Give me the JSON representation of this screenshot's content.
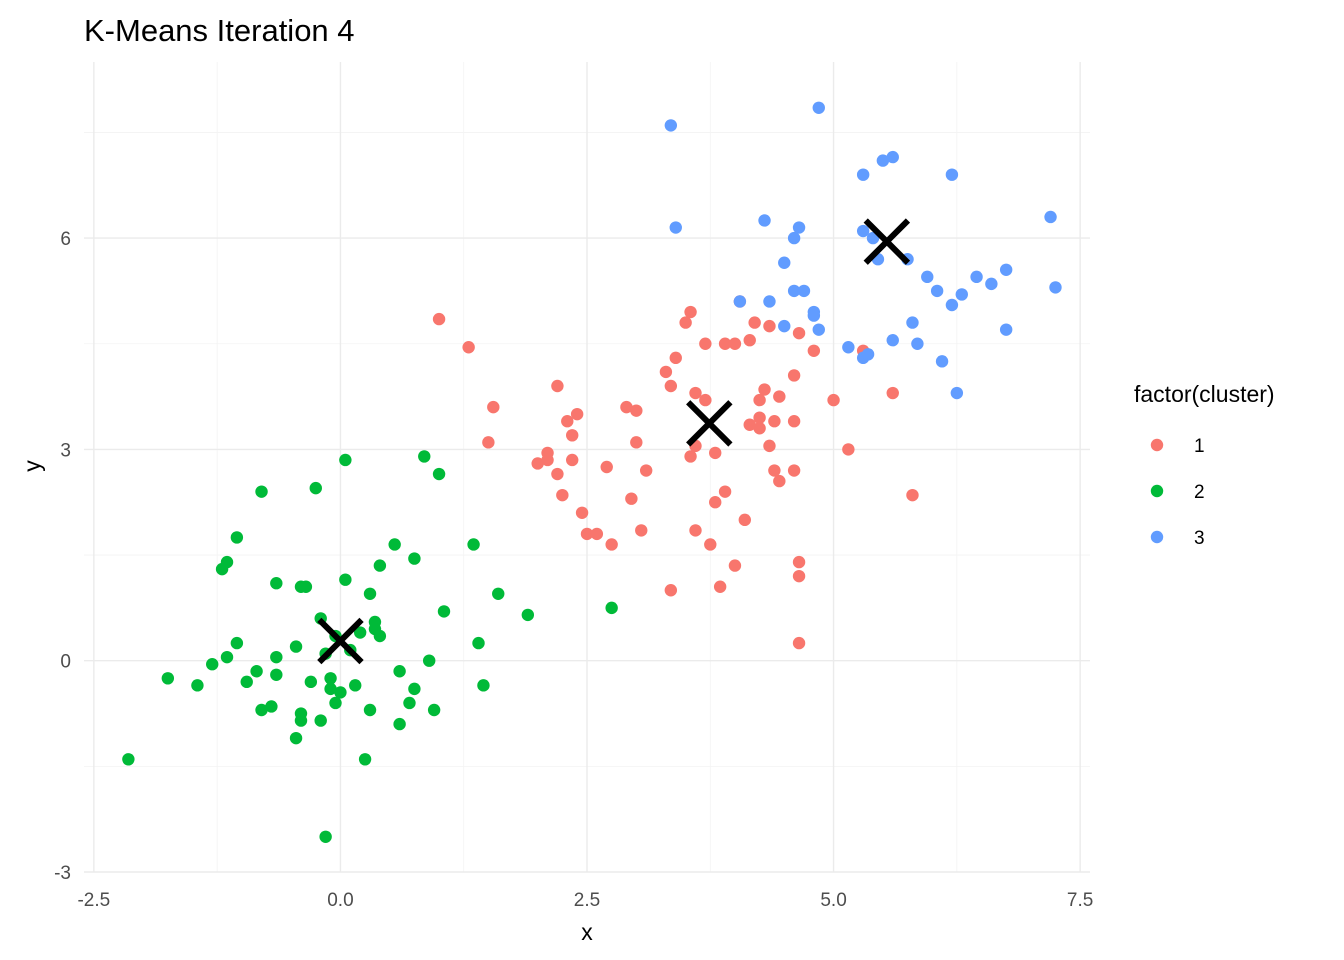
{
  "chart_data": {
    "type": "scatter",
    "title": "K-Means Iteration 4",
    "xlabel": "x",
    "ylabel": "y",
    "xlim": [
      -2.6,
      7.6
    ],
    "ylim": [
      -3.0,
      8.5
    ],
    "x_ticks": [
      -2.5,
      0.0,
      2.5,
      5.0,
      7.5
    ],
    "x_tick_labels": [
      "-2.5",
      "0.0",
      "2.5",
      "5.0",
      "7.5"
    ],
    "y_ticks": [
      -3,
      0,
      3,
      6
    ],
    "y_tick_labels": [
      "-3",
      "0",
      "3",
      "6"
    ],
    "grid": true,
    "legend": {
      "title": "factor(cluster)",
      "position": "right"
    },
    "series": [
      {
        "name": "1",
        "color": "#F8766D",
        "points": [
          [
            1.0,
            4.85
          ],
          [
            1.3,
            4.45
          ],
          [
            1.5,
            3.1
          ],
          [
            1.55,
            3.6
          ],
          [
            2.0,
            2.8
          ],
          [
            2.1,
            2.85
          ],
          [
            2.1,
            2.95
          ],
          [
            2.2,
            3.9
          ],
          [
            2.2,
            2.65
          ],
          [
            2.25,
            2.35
          ],
          [
            2.3,
            3.4
          ],
          [
            2.35,
            3.2
          ],
          [
            2.35,
            2.85
          ],
          [
            2.4,
            3.5
          ],
          [
            2.45,
            2.1
          ],
          [
            2.5,
            1.8
          ],
          [
            2.6,
            1.8
          ],
          [
            2.7,
            2.75
          ],
          [
            2.75,
            1.65
          ],
          [
            2.9,
            3.6
          ],
          [
            2.95,
            2.3
          ],
          [
            3.0,
            3.55
          ],
          [
            3.0,
            3.1
          ],
          [
            3.05,
            1.85
          ],
          [
            3.1,
            2.7
          ],
          [
            3.3,
            4.1
          ],
          [
            3.35,
            3.9
          ],
          [
            3.35,
            1.0
          ],
          [
            3.4,
            4.3
          ],
          [
            3.5,
            4.8
          ],
          [
            3.55,
            4.95
          ],
          [
            3.55,
            2.9
          ],
          [
            3.6,
            3.05
          ],
          [
            3.6,
            1.85
          ],
          [
            3.6,
            3.8
          ],
          [
            3.7,
            3.7
          ],
          [
            3.7,
            4.5
          ],
          [
            3.75,
            1.65
          ],
          [
            3.8,
            2.95
          ],
          [
            3.8,
            2.25
          ],
          [
            3.85,
            1.05
          ],
          [
            3.9,
            4.5
          ],
          [
            3.9,
            2.4
          ],
          [
            4.0,
            1.35
          ],
          [
            4.0,
            4.5
          ],
          [
            4.05,
            5.1
          ],
          [
            4.1,
            2.0
          ],
          [
            4.15,
            4.55
          ],
          [
            4.15,
            3.35
          ],
          [
            4.2,
            4.8
          ],
          [
            4.25,
            3.3
          ],
          [
            4.25,
            3.45
          ],
          [
            4.25,
            3.7
          ],
          [
            4.3,
            3.85
          ],
          [
            4.35,
            3.05
          ],
          [
            4.35,
            4.75
          ],
          [
            4.4,
            3.4
          ],
          [
            4.4,
            2.7
          ],
          [
            4.45,
            2.55
          ],
          [
            4.45,
            3.75
          ],
          [
            4.6,
            3.4
          ],
          [
            4.6,
            4.05
          ],
          [
            4.6,
            2.7
          ],
          [
            4.65,
            4.65
          ],
          [
            4.65,
            1.4
          ],
          [
            4.65,
            1.2
          ],
          [
            4.65,
            0.25
          ],
          [
            4.8,
            4.4
          ],
          [
            5.0,
            3.7
          ],
          [
            5.15,
            3.0
          ],
          [
            5.3,
            4.4
          ],
          [
            5.6,
            3.8
          ],
          [
            5.8,
            2.35
          ]
        ]
      },
      {
        "name": "2",
        "color": "#00BA38",
        "points": [
          [
            -2.15,
            -1.4
          ],
          [
            -1.75,
            -0.25
          ],
          [
            -1.45,
            -0.35
          ],
          [
            -1.3,
            -0.05
          ],
          [
            -1.2,
            1.3
          ],
          [
            -1.15,
            0.05
          ],
          [
            -1.15,
            1.4
          ],
          [
            -1.05,
            1.75
          ],
          [
            -1.05,
            0.25
          ],
          [
            -0.95,
            -0.3
          ],
          [
            -0.85,
            -0.15
          ],
          [
            -0.8,
            -0.7
          ],
          [
            -0.8,
            2.4
          ],
          [
            -0.7,
            -0.65
          ],
          [
            -0.65,
            1.1
          ],
          [
            -0.65,
            -0.2
          ],
          [
            -0.65,
            0.05
          ],
          [
            -0.45,
            0.2
          ],
          [
            -0.45,
            -1.1
          ],
          [
            -0.4,
            1.05
          ],
          [
            -0.4,
            -0.75
          ],
          [
            -0.4,
            -0.85
          ],
          [
            -0.35,
            1.05
          ],
          [
            -0.3,
            -0.3
          ],
          [
            -0.25,
            2.45
          ],
          [
            -0.2,
            0.6
          ],
          [
            -0.2,
            -0.85
          ],
          [
            -0.15,
            -2.5
          ],
          [
            -0.15,
            0.1
          ],
          [
            -0.1,
            -0.25
          ],
          [
            -0.1,
            -0.4
          ],
          [
            -0.05,
            -0.6
          ],
          [
            -0.05,
            0.35
          ],
          [
            0.0,
            -0.45
          ],
          [
            0.05,
            2.85
          ],
          [
            0.05,
            1.15
          ],
          [
            0.1,
            0.15
          ],
          [
            0.15,
            -0.35
          ],
          [
            0.2,
            0.4
          ],
          [
            0.25,
            -1.4
          ],
          [
            0.3,
            0.95
          ],
          [
            0.3,
            -0.7
          ],
          [
            0.35,
            0.55
          ],
          [
            0.35,
            0.45
          ],
          [
            0.4,
            1.35
          ],
          [
            0.4,
            0.35
          ],
          [
            0.55,
            1.65
          ],
          [
            0.6,
            -0.15
          ],
          [
            0.6,
            -0.9
          ],
          [
            0.7,
            -0.6
          ],
          [
            0.75,
            1.45
          ],
          [
            0.75,
            -0.4
          ],
          [
            0.85,
            2.9
          ],
          [
            0.9,
            0.0
          ],
          [
            0.95,
            -0.7
          ],
          [
            1.0,
            2.65
          ],
          [
            1.05,
            0.7
          ],
          [
            1.35,
            1.65
          ],
          [
            1.4,
            0.25
          ],
          [
            1.45,
            -0.35
          ],
          [
            1.6,
            0.95
          ],
          [
            1.9,
            0.65
          ],
          [
            2.75,
            0.75
          ]
        ]
      },
      {
        "name": "3",
        "color": "#619CFF",
        "points": [
          [
            3.35,
            7.6
          ],
          [
            3.4,
            6.15
          ],
          [
            4.05,
            5.1
          ],
          [
            4.3,
            6.25
          ],
          [
            4.35,
            5.1
          ],
          [
            4.5,
            5.65
          ],
          [
            4.5,
            4.75
          ],
          [
            4.6,
            6.0
          ],
          [
            4.6,
            5.25
          ],
          [
            4.65,
            6.15
          ],
          [
            4.7,
            5.25
          ],
          [
            4.8,
            4.95
          ],
          [
            4.8,
            4.9
          ],
          [
            4.85,
            7.85
          ],
          [
            4.85,
            4.7
          ],
          [
            5.15,
            4.45
          ],
          [
            5.3,
            4.3
          ],
          [
            5.3,
            6.9
          ],
          [
            5.3,
            6.1
          ],
          [
            5.35,
            4.35
          ],
          [
            5.4,
            6.0
          ],
          [
            5.45,
            5.7
          ],
          [
            5.5,
            7.1
          ],
          [
            5.6,
            7.15
          ],
          [
            5.6,
            4.55
          ],
          [
            5.75,
            5.7
          ],
          [
            5.8,
            4.8
          ],
          [
            5.85,
            4.5
          ],
          [
            5.95,
            5.45
          ],
          [
            6.05,
            5.25
          ],
          [
            6.1,
            4.25
          ],
          [
            6.2,
            6.9
          ],
          [
            6.2,
            5.05
          ],
          [
            6.25,
            3.8
          ],
          [
            6.3,
            5.2
          ],
          [
            6.45,
            5.45
          ],
          [
            6.6,
            5.35
          ],
          [
            6.75,
            5.55
          ],
          [
            6.75,
            4.7
          ],
          [
            7.2,
            6.3
          ],
          [
            7.25,
            5.3
          ]
        ]
      }
    ],
    "centroids": {
      "marker": "x",
      "color": "#000000",
      "points": [
        [
          0.0,
          0.28
        ],
        [
          3.74,
          3.37
        ],
        [
          5.54,
          5.95
        ]
      ]
    }
  }
}
